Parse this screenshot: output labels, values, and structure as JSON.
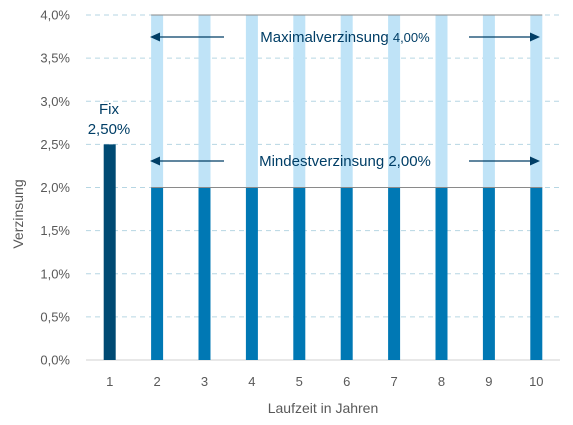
{
  "chart_data": {
    "type": "bar",
    "xlabel": "Laufzeit in Jahren",
    "ylabel": "Verzinsung",
    "ylim": [
      0,
      4.0
    ],
    "yticks": [
      "0,0%",
      "0,5%",
      "1,0%",
      "1,5%",
      "2,0%",
      "2,5%",
      "3,0%",
      "3,5%",
      "4,0%"
    ],
    "categories": [
      "1",
      "2",
      "3",
      "4",
      "5",
      "6",
      "7",
      "8",
      "9",
      "10"
    ],
    "series": [
      {
        "values": [
          2.5,
          0,
          0,
          0,
          0,
          0,
          0,
          0,
          0,
          0
        ]
      },
      {
        "values": [
          0,
          2.0,
          2.0,
          2.0,
          2.0,
          2.0,
          2.0,
          2.0,
          2.0,
          2.0
        ]
      },
      {
        "values": [
          0,
          2.0,
          2.0,
          2.0,
          2.0,
          2.0,
          2.0,
          2.0,
          2.0,
          2.0
        ]
      }
    ],
    "grid": true,
    "annotations": {
      "fix_label_1": "Fix",
      "fix_label_2": "2,50%",
      "max_label_main": "Maximalverzinsung",
      "max_label_value": "4,00%",
      "min_label": "Mindestverzinsung 2,00%"
    }
  },
  "colors": {
    "fix": "#004a73",
    "minimum": "#0078b4",
    "upside": "#bfe3f7",
    "annotation": "#003e66",
    "grid": "#b6d6e3",
    "tick_text": "#595959"
  }
}
